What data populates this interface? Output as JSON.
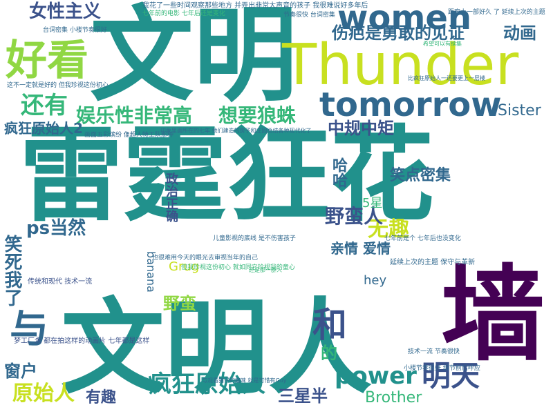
{
  "colors": {
    "teal": "#21918c",
    "green": "#35b779",
    "lime": "#90d743",
    "yellow": "#c8e020",
    "navy": "#31688e",
    "indigo": "#3b528b",
    "purple": "#440154",
    "dark": "#443983"
  },
  "words": {
    "wenming": "文明",
    "leiting": "雷霆狂花",
    "wenmingren": "文明人",
    "thunder": "Thunder",
    "women": "women",
    "tomorrow": "tomorrow",
    "haokan": "好看",
    "qiang": "墙",
    "yu": "与",
    "power": "power",
    "fengkuang": "疯狂原始人",
    "mingtian": "明天",
    "he": "和",
    "yuanshiren": "原始人",
    "yemanren": "野蛮人",
    "nvxing": "女性主义",
    "shanghen": "伤疤是勇敢的见证",
    "donghua": "动画",
    "haiyou": "还有",
    "yule": "娱乐性非常高",
    "langzhu": "想要狼蛛",
    "sister": "Sister",
    "fengkuang2": "疯狂原始人2",
    "zhonggui": "中规中矩",
    "xiaosi": "笑死我了",
    "psdangran": "ps当然",
    "wuqu": "无趣",
    "qinqing": "亲情 爱情",
    "yeman": "野蛮",
    "brother": "Brother",
    "sanxingban": "三星半",
    "youqu": "有趣",
    "chuanghu": "窗户",
    "xiaodian": "笑点密集",
    "wuxing": "5星",
    "banana": "banana",
    "hey": "hey",
    "grug": "Grug",
    "zhengzhi": "政治正确",
    "haha": "哈哈",
    "de": "的",
    "chuantong": "传统和现代 技术一流",
    "yanxu": "延续上次的主题 保守与革新",
    "mengchang": "梦工厂永  都在拍这样的动画片 七年都是这样",
    "sentence1": "我花了一些时间观察那些地方 并弄出非常大声音的孩子 我很难说好多年后",
    "sentence2": "七年前的电影 七年后还是变化",
    "sentence3": "这不一定就是好的 但我珍视这份初心",
    "sentence4": "也很难用今天的眼光去审视当年的自己",
    "sentence5": "但我珍视这份初心 就如同它珍视我的童心",
    "sentence6": "儿童影视的底线 是不伤害孩子",
    "sentence7": "七年前是个 七年后也没变化",
    "sentence8": "节奏很快 台词密集",
    "sentence9": "台词密集 小楼节奏很好",
    "sentence10": "画面五彩缤纷 像超人特工队那种",
    "sentence11": "印象里面所在的七年 他们建造的房子和庄园总结各种现代化了",
    "sentence12": "小楼节奏很好 细节前后呼应",
    "sentence13": "技术一流 节奏很快",
    "sentence14": "与观看猪仔的趣味 就是可惜有Guy",
    "sentence15": "还是那一群人",
    "sentence16": "比疯狂原始人一还要更上一层楼",
    "sentence17": "希望可以有续集",
    "sentence18": "距离上一部好久 了 延续上次的主题"
  }
}
